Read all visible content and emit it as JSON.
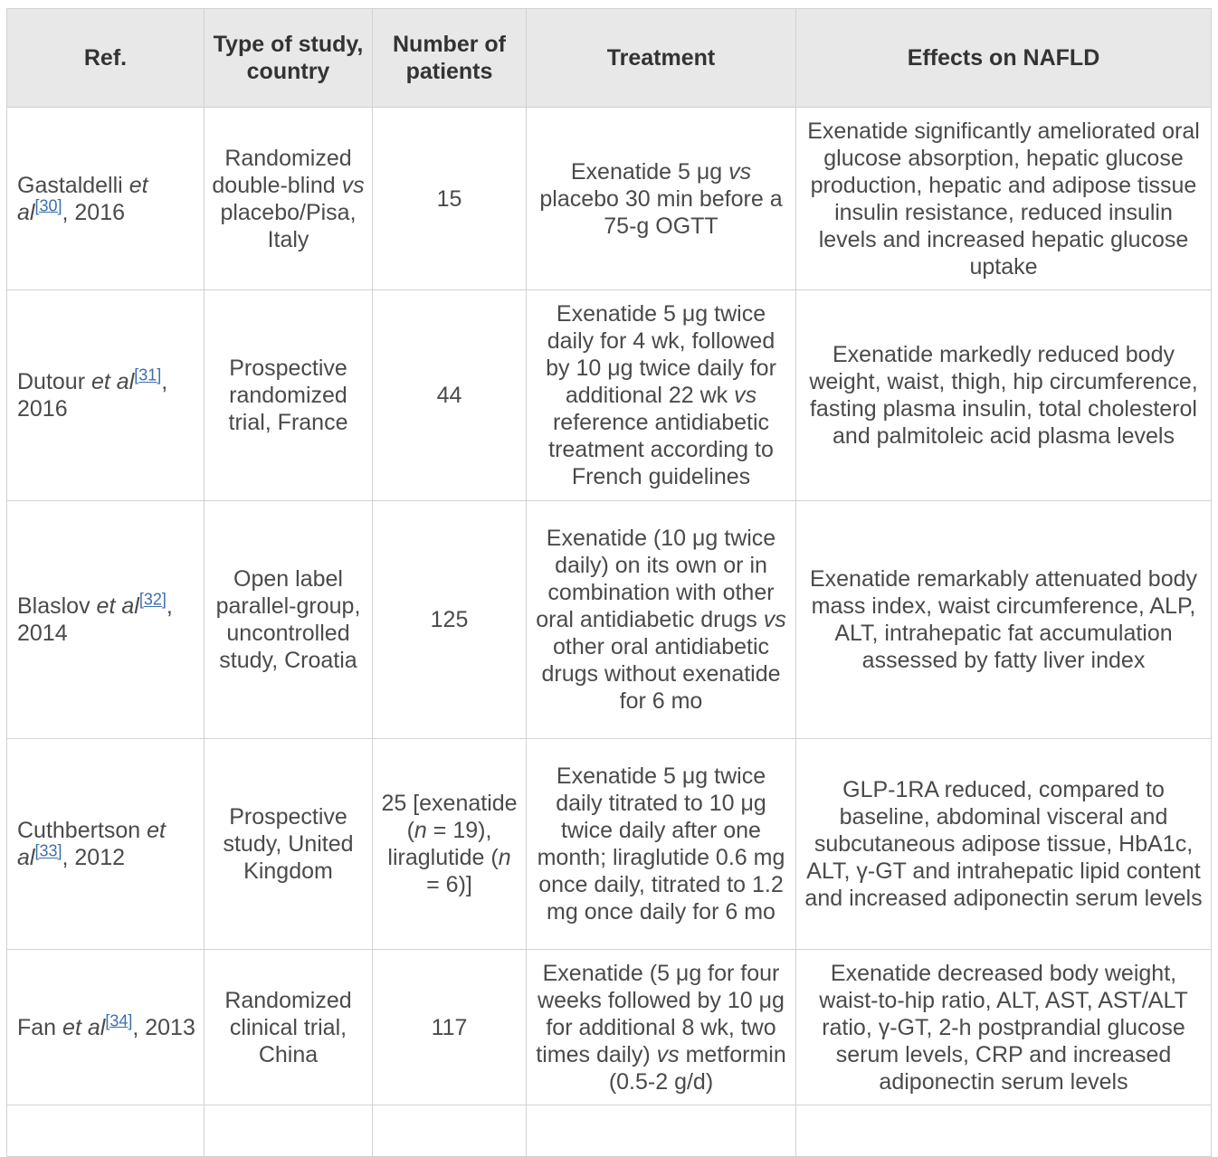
{
  "table": {
    "headers": {
      "ref": "Ref.",
      "type": "Type of study, country",
      "patients": "Number of patients",
      "treatment": "Treatment",
      "effects": "Effects on NAFLD"
    },
    "rows": [
      {
        "ref_author": "Gastaldelli",
        "ref_etal": "et al",
        "ref_num": "[30]",
        "ref_year": ", 2016",
        "type_a": "Randomized double-blind ",
        "type_vs": "vs",
        "type_b": " placebo/Pisa, Italy",
        "patients": "15",
        "treat_a": "Exenatide 5 μg ",
        "treat_vs": "vs",
        "treat_b": " placebo 30 min before a 75-g OGTT",
        "effects": "Exenatide significantly ameliorated oral glucose absorption, hepatic glucose production, hepatic and adipose tissue insulin resistance, reduced insulin levels and increased hepatic glucose uptake"
      },
      {
        "ref_author": "Dutour",
        "ref_etal": "et al",
        "ref_num": "[31]",
        "ref_year": ", 2016",
        "type": "Prospective randomized trial, France",
        "patients": "44",
        "treat_a": "Exenatide 5 μg twice daily for 4 wk, followed by 10 μg twice daily for additional 22 wk ",
        "treat_vs": "vs",
        "treat_b": " reference antidiabetic treatment according to French guidelines",
        "effects": "Exenatide markedly reduced body weight, waist, thigh, hip circumference, fasting plasma insulin, total cholesterol and palmitoleic acid plasma levels"
      },
      {
        "ref_author": "Blaslov",
        "ref_etal": "et al",
        "ref_num": "[32]",
        "ref_year": ", 2014",
        "type": "Open label parallel-group, uncontrolled study, Croatia",
        "patients": "125",
        "treat_a": "Exenatide (10 μg twice daily) on its own or in combination with other oral antidiabetic drugs ",
        "treat_vs": "vs",
        "treat_b": " other oral antidiabetic drugs without exenatide for 6 mo",
        "effects": "Exenatide remarkably attenuated body mass index, waist circumference, ALP, ALT, intrahepatic fat accumulation assessed by fatty liver index"
      },
      {
        "ref_author": "Cuthbertson",
        "ref_etal": "et al",
        "ref_num": "[33]",
        "ref_year": ", 2012",
        "type": "Prospective study, United Kingdom",
        "patients_a": "25 [exenatide (",
        "patients_n1": "n",
        "patients_b": " = 19), liraglutide (",
        "patients_n2": "n",
        "patients_c": " = 6)]",
        "treatment": "Exenatide 5 μg twice daily titrated to 10 μg twice daily after one month; liraglutide 0.6 mg once daily, titrated to 1.2 mg once daily for 6 mo",
        "effects": "GLP-1RA reduced, compared to baseline, abdominal visceral and subcutaneous adipose tissue, HbA1c, ALT, γ-GT and intrahepatic lipid content and increased adiponectin serum levels"
      },
      {
        "ref_author": "Fan",
        "ref_etal": "et al",
        "ref_num": "[34]",
        "ref_year": ", 2013",
        "type": "Randomized clinical trial, China",
        "patients": "117",
        "treat_a": "Exenatide (5 μg for four weeks followed by 10 μg for additional 8 wk, two times daily) ",
        "treat_vs": "vs",
        "treat_b": " metformin (0.5-2 g/d)",
        "effects": "Exenatide decreased body weight, waist-to-hip ratio, ALT, AST, AST/ALT ratio, γ-GT, 2-h postprandial glucose serum levels, CRP and increased adiponectin serum levels"
      }
    ]
  }
}
